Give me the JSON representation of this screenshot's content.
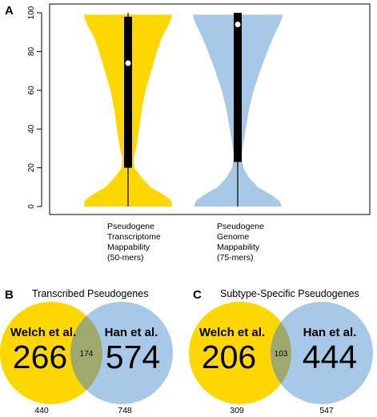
{
  "chart_data": [
    {
      "type": "violin",
      "panel": "A",
      "ylim": [
        0,
        100
      ],
      "yticks": [
        "0",
        "20",
        "40",
        "60",
        "80",
        "100"
      ],
      "categories": [
        [
          "Pseudogene",
          "Transcriptome",
          "Mappability",
          "(50-mers)"
        ],
        [
          "Pseudogene",
          "Genome",
          "Mappability",
          "(75-mers)"
        ]
      ],
      "series": [
        {
          "color": "#FFD700",
          "median": 74,
          "q1": 20,
          "q3": 98,
          "min": 0,
          "max": 100,
          "density_y": [
            0,
            3,
            6,
            10,
            15,
            20,
            25,
            30,
            35,
            40,
            50,
            60,
            70,
            80,
            88,
            93,
            97,
            99
          ],
          "density_half_width": [
            0.55,
            0.54,
            0.45,
            0.28,
            0.17,
            0.08,
            0.07,
            0.1,
            0.12,
            0.14,
            0.17,
            0.22,
            0.29,
            0.36,
            0.43,
            0.5,
            0.54,
            0.55
          ]
        },
        {
          "color": "#A8C8E8",
          "median": 94,
          "q1": 23,
          "q3": 100,
          "min": 0,
          "max": 100,
          "density_y": [
            0,
            3,
            6,
            10,
            15,
            20,
            25,
            30,
            35,
            40,
            50,
            60,
            70,
            80,
            88,
            93,
            97,
            99
          ],
          "density_half_width": [
            0.55,
            0.52,
            0.42,
            0.25,
            0.14,
            0.07,
            0.05,
            0.06,
            0.08,
            0.1,
            0.14,
            0.2,
            0.28,
            0.37,
            0.45,
            0.51,
            0.55,
            0.56
          ]
        }
      ]
    },
    {
      "type": "venn",
      "panel": "B",
      "title": "Transcribed Pseudogenes",
      "sets": [
        {
          "name": "Welch et al.",
          "only": "266",
          "total": "440",
          "color": "#FFD700"
        },
        {
          "name": "Han et al.",
          "only": "574",
          "total": "748",
          "color": "#A8C8E8"
        }
      ],
      "intersection": "174"
    },
    {
      "type": "venn",
      "panel": "C",
      "title": "Subtype-Specific Pseudogenes",
      "sets": [
        {
          "name": "Welch et al.",
          "only": "206",
          "total": "309",
          "color": "#FFD700"
        },
        {
          "name": "Han et al.",
          "only": "444",
          "total": "547",
          "color": "#A8C8E8"
        }
      ],
      "intersection": "103"
    }
  ]
}
